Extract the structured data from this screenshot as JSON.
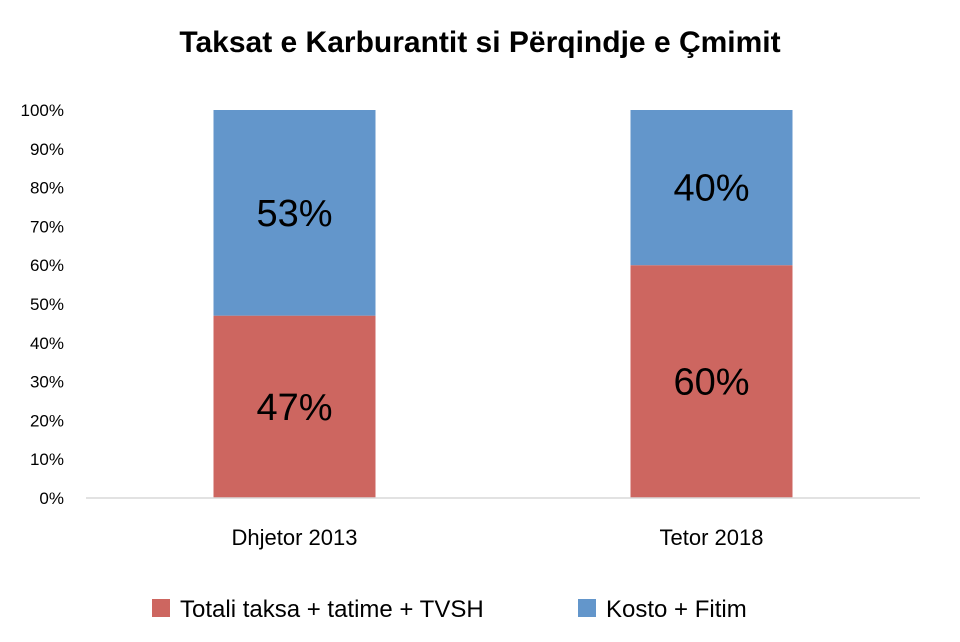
{
  "chart_data": {
    "type": "bar",
    "stacked": true,
    "title": "Taksat e Karburantit si Përqindje e Çmimit",
    "categories": [
      "Dhjetor 2013",
      "Tetor 2018"
    ],
    "series": [
      {
        "name": "Totali taksa + tatime + TVSH",
        "values": [
          47,
          60
        ],
        "labels": [
          "47%",
          "60%"
        ],
        "color": "#cd6660"
      },
      {
        "name": "Kosto + Fitim",
        "values": [
          53,
          40
        ],
        "labels": [
          "53%",
          "40%"
        ],
        "color": "#6396cb"
      }
    ],
    "ylim": [
      0,
      100
    ],
    "yticks": [
      "0%",
      "10%",
      "20%",
      "30%",
      "40%",
      "50%",
      "60%",
      "70%",
      "80%",
      "90%",
      "100%"
    ],
    "grid": false,
    "legend_position": "bottom"
  }
}
